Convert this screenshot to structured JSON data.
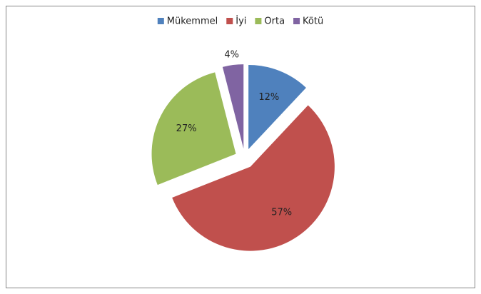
{
  "chart_data": {
    "type": "pie",
    "categories": [
      "Mükemmel",
      "İyi",
      "Orta",
      "Kötü"
    ],
    "values": [
      12,
      57,
      27,
      4
    ],
    "value_labels": [
      "12%",
      "57%",
      "27%",
      "4%"
    ],
    "colors": [
      "#4f81bd",
      "#c0504d",
      "#9bbb59",
      "#8064a2"
    ],
    "exploded": true,
    "legend": "top"
  }
}
